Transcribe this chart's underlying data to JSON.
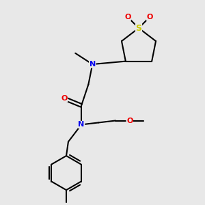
{
  "bg_color": "#e8e8e8",
  "bond_color": "#000000",
  "bond_width": 1.5,
  "atom_colors": {
    "N": "#0000ee",
    "O": "#ee0000",
    "S": "#cccc00",
    "C": "#000000"
  },
  "font_size_atom": 8,
  "font_size_small": 7
}
